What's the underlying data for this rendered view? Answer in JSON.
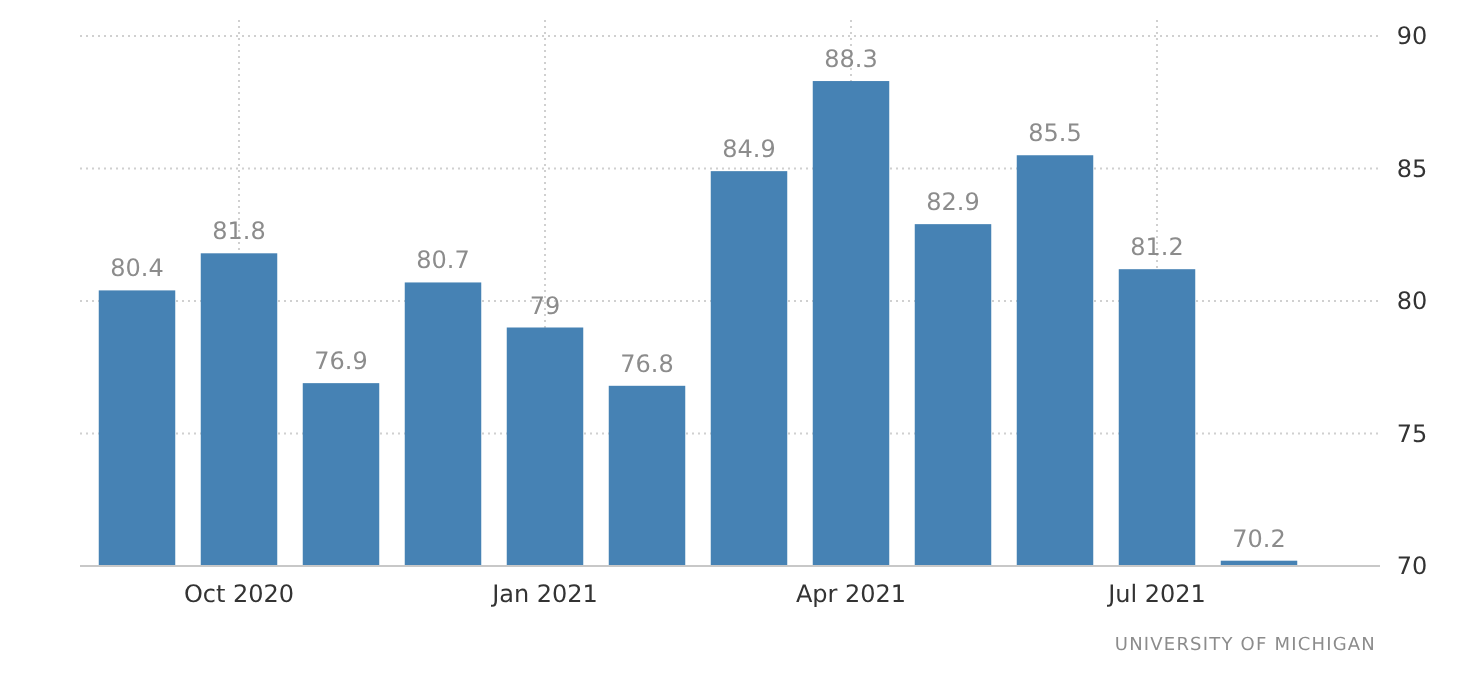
{
  "chart_data": {
    "type": "bar",
    "categories": [
      null,
      "Oct 2020",
      null,
      null,
      "Jan 2021",
      null,
      null,
      "Apr 2021",
      null,
      null,
      "Jul 2021",
      null
    ],
    "values": [
      80.4,
      81.8,
      76.9,
      80.7,
      79,
      76.8,
      84.9,
      88.3,
      82.9,
      85.5,
      81.2,
      70.2
    ],
    "color": "#4682b4",
    "ylim": [
      70,
      90
    ],
    "yticks": [
      70,
      75,
      80,
      85,
      90
    ],
    "grid": true,
    "data_labels": true,
    "annotations": [
      "UNIVERSITY OF MICHIGAN"
    ]
  }
}
